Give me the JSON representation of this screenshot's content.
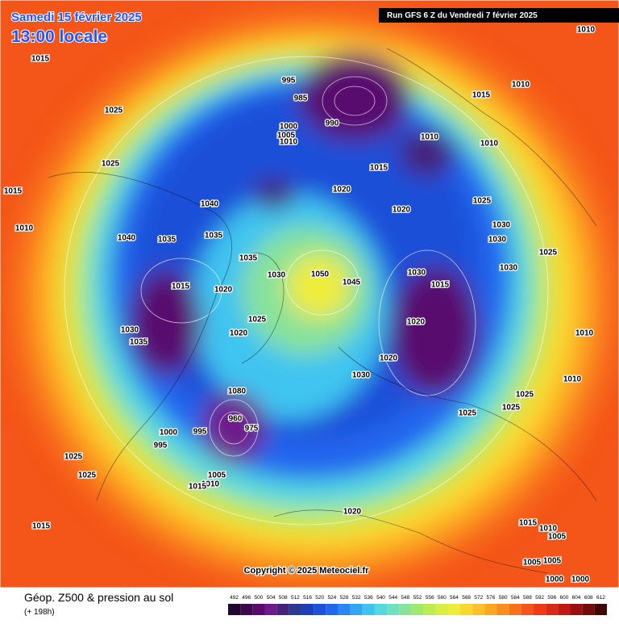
{
  "header": {
    "date": "Samedi 15 février 2025",
    "time": "13:00 locale",
    "run": "Run GFS 6 Z du Vendredi 7 février 2025"
  },
  "copyright": "Copyright © 2025 Meteociel.fr",
  "footer": {
    "title": "Géop. Z500 & pression au sol",
    "lead": "(+ 198h)"
  },
  "legend": {
    "levels": [
      492,
      496,
      500,
      504,
      508,
      512,
      516,
      520,
      524,
      528,
      532,
      536,
      540,
      544,
      548,
      552,
      556,
      560,
      564,
      568,
      572,
      576,
      580,
      584,
      588,
      592,
      596,
      600,
      604,
      608,
      612
    ],
    "colors": [
      "#1f0a2e",
      "#3b0a4a",
      "#580a6e",
      "#6e1a8a",
      "#44247a",
      "#2c3a8e",
      "#1d3fb8",
      "#1e50d8",
      "#2266ee",
      "#2a86f0",
      "#33a6f2",
      "#3fc4f0",
      "#55d8e0",
      "#6fe0c0",
      "#88e29a",
      "#a0e870",
      "#bcec50",
      "#d8ee40",
      "#f0ec3a",
      "#fbd830",
      "#fcc028",
      "#fca622",
      "#fb8c1e",
      "#f8701a",
      "#f45518",
      "#ee3a16",
      "#d82a14",
      "#c01a12",
      "#9a0e10",
      "#700a0c",
      "#400606"
    ]
  },
  "pressure_labels": [
    1015,
    1025,
    1010,
    1015,
    1010,
    1025,
    1040,
    1040,
    1035,
    1035,
    1015,
    1020,
    1030,
    1035,
    1050,
    1045,
    1030,
    1035,
    1025,
    1020,
    995,
    985,
    990,
    1000,
    1005,
    1010,
    1015,
    1020,
    1020,
    1010,
    1010,
    1015,
    1010,
    1025,
    1030,
    1030,
    1030,
    1025,
    1015,
    1020,
    1030,
    1020,
    1010,
    1030,
    1025,
    1025,
    1025,
    1010,
    1080,
    960,
    975,
    995,
    1000,
    995,
    1005,
    1010,
    1015,
    1025,
    1025,
    1015,
    1020,
    1015,
    1010,
    1005,
    1005,
    1000,
    1000,
    1005
  ]
}
